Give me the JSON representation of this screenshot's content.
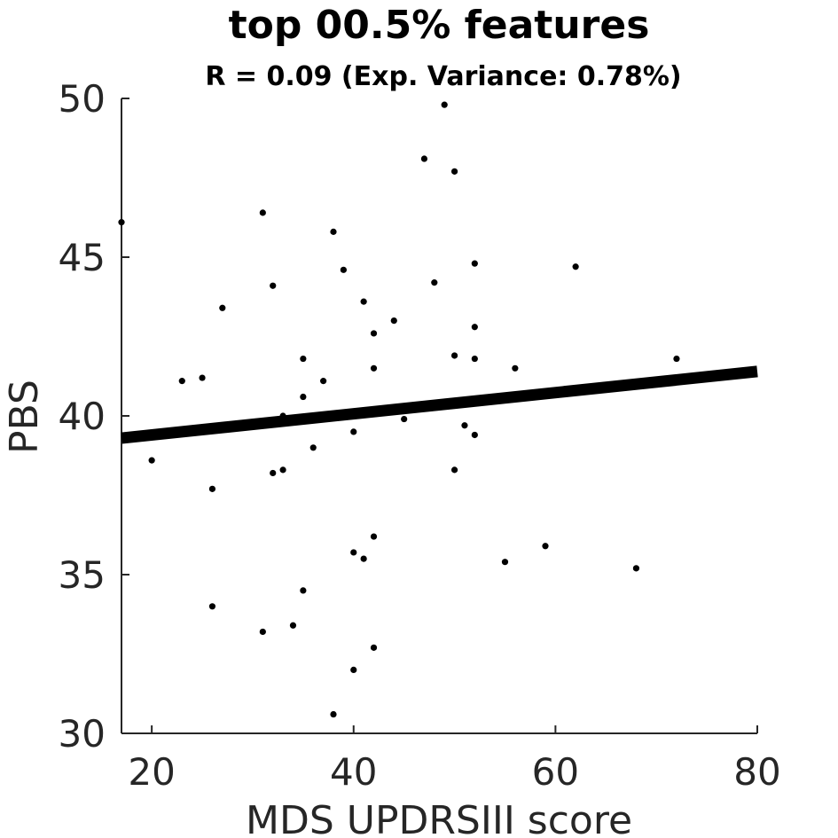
{
  "chart_data": {
    "type": "scatter",
    "title": "top 00.5% features",
    "subtitle": "R = 0.09 (Exp. Variance: 0.78%)",
    "xlabel": "MDS UPDRSIII score",
    "ylabel": "PBS",
    "xlim": [
      17,
      80
    ],
    "ylim": [
      30,
      50
    ],
    "xticks": [
      20,
      40,
      60,
      80
    ],
    "yticks": [
      30,
      35,
      40,
      45,
      50
    ],
    "grid": false,
    "regression_line": {
      "x": [
        17,
        80
      ],
      "y": [
        39.3,
        41.4
      ]
    },
    "points": [
      {
        "x": 17,
        "y": 46.1
      },
      {
        "x": 20,
        "y": 38.6
      },
      {
        "x": 23,
        "y": 41.1
      },
      {
        "x": 25,
        "y": 41.2
      },
      {
        "x": 26,
        "y": 37.7
      },
      {
        "x": 26,
        "y": 34.0
      },
      {
        "x": 27,
        "y": 43.4
      },
      {
        "x": 31,
        "y": 46.4
      },
      {
        "x": 31,
        "y": 33.2
      },
      {
        "x": 32,
        "y": 44.1
      },
      {
        "x": 32,
        "y": 38.2
      },
      {
        "x": 33,
        "y": 40.0
      },
      {
        "x": 33,
        "y": 38.3
      },
      {
        "x": 34,
        "y": 33.4
      },
      {
        "x": 35,
        "y": 41.8
      },
      {
        "x": 35,
        "y": 40.6
      },
      {
        "x": 35,
        "y": 34.5
      },
      {
        "x": 36,
        "y": 39.0
      },
      {
        "x": 37,
        "y": 41.1
      },
      {
        "x": 38,
        "y": 45.8
      },
      {
        "x": 38,
        "y": 30.6
      },
      {
        "x": 39,
        "y": 44.6
      },
      {
        "x": 40,
        "y": 39.5
      },
      {
        "x": 40,
        "y": 35.7
      },
      {
        "x": 40,
        "y": 32.0
      },
      {
        "x": 41,
        "y": 43.6
      },
      {
        "x": 41,
        "y": 35.5
      },
      {
        "x": 42,
        "y": 42.6
      },
      {
        "x": 42,
        "y": 41.5
      },
      {
        "x": 42,
        "y": 36.2
      },
      {
        "x": 42,
        "y": 32.7
      },
      {
        "x": 44,
        "y": 43.0
      },
      {
        "x": 45,
        "y": 39.9
      },
      {
        "x": 47,
        "y": 48.1
      },
      {
        "x": 48,
        "y": 44.2
      },
      {
        "x": 49,
        "y": 49.8
      },
      {
        "x": 50,
        "y": 47.7
      },
      {
        "x": 50,
        "y": 41.9
      },
      {
        "x": 50,
        "y": 38.3
      },
      {
        "x": 51,
        "y": 39.7
      },
      {
        "x": 52,
        "y": 44.8
      },
      {
        "x": 52,
        "y": 42.8
      },
      {
        "x": 52,
        "y": 41.8
      },
      {
        "x": 52,
        "y": 39.4
      },
      {
        "x": 55,
        "y": 35.4
      },
      {
        "x": 56,
        "y": 41.5
      },
      {
        "x": 59,
        "y": 35.9
      },
      {
        "x": 62,
        "y": 44.7
      },
      {
        "x": 68,
        "y": 35.2
      },
      {
        "x": 72,
        "y": 41.8
      }
    ]
  }
}
